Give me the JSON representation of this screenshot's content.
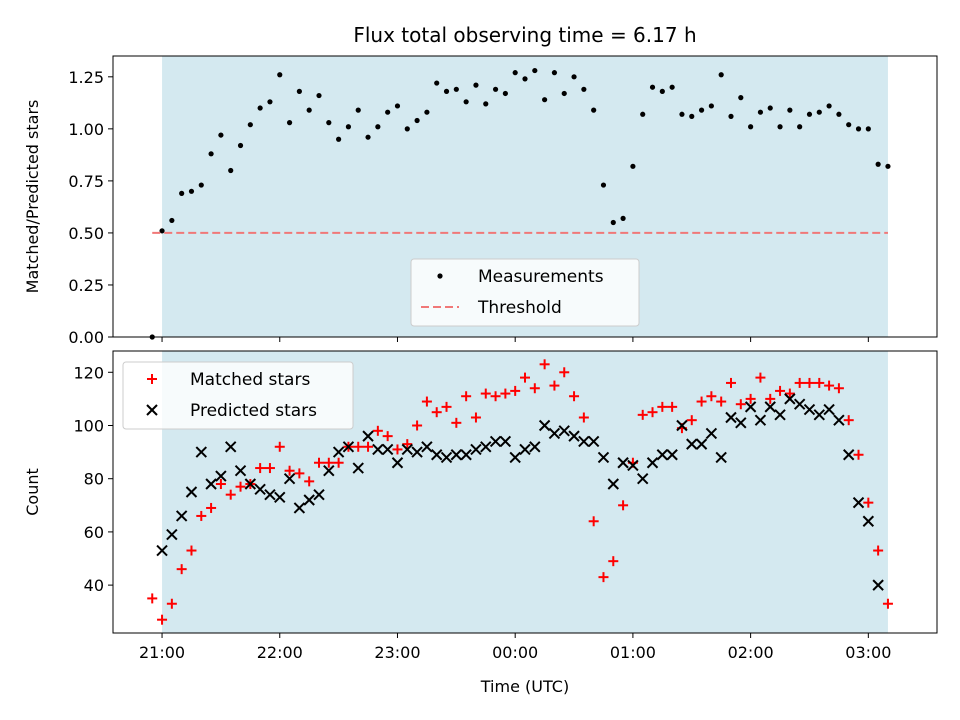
{
  "chart_data": [
    {
      "type": "scatter",
      "panel": "top",
      "title": "Flux total observing time = 6.17 h",
      "xlabel": "",
      "ylabel": "Matched/Predicted stars",
      "ylim": [
        0.0,
        1.35
      ],
      "xlim": [
        "20:35",
        "03:35"
      ],
      "yticks": [
        "0.00",
        "0.25",
        "0.50",
        "0.75",
        "1.00",
        "1.25"
      ],
      "shaded_span": [
        "21:00",
        "03:10"
      ],
      "shade_color": "#d4e9f0",
      "legend": {
        "placement": "lower center"
      },
      "series": [
        {
          "name": "Measurements",
          "marker": "dot",
          "color": "#000000",
          "x": [
            "20:55",
            "21:00",
            "21:05",
            "21:10",
            "21:15",
            "21:20",
            "21:25",
            "21:30",
            "21:35",
            "21:40",
            "21:45",
            "21:50",
            "21:55",
            "22:00",
            "22:05",
            "22:10",
            "22:15",
            "22:20",
            "22:25",
            "22:30",
            "22:35",
            "22:40",
            "22:45",
            "22:50",
            "22:55",
            "23:00",
            "23:05",
            "23:10",
            "23:15",
            "23:20",
            "23:25",
            "23:30",
            "23:35",
            "23:40",
            "23:45",
            "23:50",
            "23:55",
            "00:00",
            "00:05",
            "00:10",
            "00:15",
            "00:20",
            "00:25",
            "00:30",
            "00:35",
            "00:40",
            "00:45",
            "00:50",
            "00:55",
            "01:00",
            "01:05",
            "01:10",
            "01:15",
            "01:20",
            "01:25",
            "01:30",
            "01:35",
            "01:40",
            "01:45",
            "01:50",
            "01:55",
            "02:00",
            "02:05",
            "02:10",
            "02:15",
            "02:20",
            "02:25",
            "02:30",
            "02:35",
            "02:40",
            "02:45",
            "02:50",
            "02:55",
            "03:00",
            "03:05",
            "03:10"
          ],
          "y": [
            0.0,
            0.51,
            0.56,
            0.69,
            0.7,
            0.73,
            0.88,
            0.97,
            0.8,
            0.92,
            1.02,
            1.1,
            1.13,
            1.26,
            1.03,
            1.18,
            1.09,
            1.16,
            1.03,
            0.95,
            1.01,
            1.09,
            0.96,
            1.01,
            1.08,
            1.11,
            1.0,
            1.04,
            1.08,
            1.22,
            1.18,
            1.19,
            1.13,
            1.21,
            1.12,
            1.19,
            1.17,
            1.27,
            1.24,
            1.28,
            1.14,
            1.27,
            1.17,
            1.25,
            1.19,
            1.09,
            0.73,
            0.55,
            0.57,
            0.82,
            1.07,
            1.2,
            1.18,
            1.2,
            1.07,
            1.06,
            1.09,
            1.11,
            1.26,
            1.06,
            1.15,
            1.01,
            1.08,
            1.1,
            1.01,
            1.09,
            1.01,
            1.07,
            1.08,
            1.11,
            1.07,
            1.02,
            1.0,
            1.0,
            0.83,
            0.82
          ]
        },
        {
          "name": "Threshold",
          "marker": "dashed-line",
          "color": "#f07878",
          "x": [
            "20:55",
            "03:10"
          ],
          "y": [
            0.5,
            0.5
          ]
        }
      ]
    },
    {
      "type": "scatter",
      "panel": "bottom",
      "title": "",
      "xlabel": "Time (UTC)",
      "ylabel": "Count",
      "ylim": [
        22,
        128
      ],
      "xlim": [
        "20:35",
        "03:35"
      ],
      "yticks": [
        "40",
        "60",
        "80",
        "100",
        "120"
      ],
      "xticks": [
        "21:00",
        "22:00",
        "23:00",
        "00:00",
        "01:00",
        "02:00",
        "03:00"
      ],
      "shaded_span": [
        "21:00",
        "03:10"
      ],
      "shade_color": "#d4e9f0",
      "legend": {
        "placement": "upper left"
      },
      "series": [
        {
          "name": "Matched stars",
          "marker": "plus",
          "color": "#ff0000",
          "x": [
            "20:55",
            "21:00",
            "21:05",
            "21:10",
            "21:15",
            "21:20",
            "21:25",
            "21:30",
            "21:35",
            "21:40",
            "21:45",
            "21:50",
            "21:55",
            "22:00",
            "22:05",
            "22:10",
            "22:15",
            "22:20",
            "22:25",
            "22:30",
            "22:35",
            "22:40",
            "22:45",
            "22:50",
            "22:55",
            "23:00",
            "23:05",
            "23:10",
            "23:15",
            "23:20",
            "23:25",
            "23:30",
            "23:35",
            "23:40",
            "23:45",
            "23:50",
            "23:55",
            "00:00",
            "00:05",
            "00:10",
            "00:15",
            "00:20",
            "00:25",
            "00:30",
            "00:35",
            "00:40",
            "00:45",
            "00:50",
            "00:55",
            "01:00",
            "01:05",
            "01:10",
            "01:15",
            "01:20",
            "01:25",
            "01:30",
            "01:35",
            "01:40",
            "01:45",
            "01:50",
            "01:55",
            "02:00",
            "02:05",
            "02:10",
            "02:15",
            "02:20",
            "02:25",
            "02:30",
            "02:35",
            "02:40",
            "02:45",
            "02:50",
            "02:55",
            "03:00",
            "03:05",
            "03:10"
          ],
          "y": [
            35,
            27,
            33,
            46,
            53,
            66,
            69,
            78,
            74,
            77,
            78,
            84,
            84,
            92,
            83,
            82,
            79,
            86,
            86,
            86,
            92,
            92,
            92,
            98,
            96,
            91,
            93,
            100,
            109,
            105,
            107,
            101,
            111,
            103,
            112,
            111,
            112,
            113,
            118,
            114,
            123,
            115,
            120,
            111,
            103,
            64,
            43,
            49,
            70,
            86,
            104,
            105,
            107,
            107,
            99,
            102,
            109,
            111,
            109,
            116,
            108,
            110,
            118,
            110,
            113,
            112,
            116,
            116,
            116,
            115,
            114,
            102,
            89,
            71,
            53,
            33
          ]
        },
        {
          "name": "Predicted stars",
          "marker": "x",
          "color": "#000000",
          "x": [
            "20:55",
            "21:00",
            "21:05",
            "21:10",
            "21:15",
            "21:20",
            "21:25",
            "21:30",
            "21:35",
            "21:40",
            "21:45",
            "21:50",
            "21:55",
            "22:00",
            "22:05",
            "22:10",
            "22:15",
            "22:20",
            "22:25",
            "22:30",
            "22:35",
            "22:40",
            "22:45",
            "22:50",
            "22:55",
            "23:00",
            "23:05",
            "23:10",
            "23:15",
            "23:20",
            "23:25",
            "23:30",
            "23:35",
            "23:40",
            "23:45",
            "23:50",
            "23:55",
            "00:00",
            "00:05",
            "00:10",
            "00:15",
            "00:20",
            "00:25",
            "00:30",
            "00:35",
            "00:40",
            "00:45",
            "00:50",
            "00:55",
            "01:00",
            "01:05",
            "01:10",
            "01:15",
            "01:20",
            "01:25",
            "01:30",
            "01:35",
            "01:40",
            "01:45",
            "01:50",
            "01:55",
            "02:00",
            "02:05",
            "02:10",
            "02:15",
            "02:20",
            "02:25",
            "02:30",
            "02:35",
            "02:40",
            "02:45",
            "02:50",
            "02:55",
            "03:00",
            "03:05",
            "03:10"
          ],
          "y": [
            null,
            53,
            59,
            66,
            75,
            90,
            78,
            81,
            92,
            83,
            78,
            76,
            74,
            73,
            80,
            69,
            72,
            74,
            83,
            90,
            92,
            84,
            96,
            91,
            91,
            86,
            91,
            90,
            92,
            89,
            88,
            89,
            89,
            91,
            92,
            94,
            94,
            88,
            91,
            92,
            100,
            97,
            98,
            96,
            94,
            94,
            88,
            78,
            86,
            85,
            80,
            86,
            89,
            89,
            100,
            93,
            93,
            97,
            88,
            103,
            101,
            107,
            102,
            107,
            104,
            110,
            108,
            106,
            104,
            106,
            102,
            89,
            71,
            64,
            40,
            null
          ]
        }
      ]
    }
  ]
}
